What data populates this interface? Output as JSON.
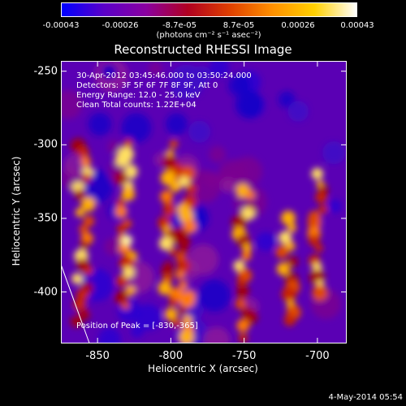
{
  "colorbar": {
    "ticks": [
      "-0.00043",
      "-0.00026",
      "-8.7e-05",
      "8.7e-05",
      "0.00026",
      "0.00043"
    ],
    "unit": "(photons cm⁻² s⁻¹ asec⁻²)",
    "colors": [
      "#0000ff",
      "#5a00c8",
      "#8a00a0",
      "#b00020",
      "#e04000",
      "#ff9000",
      "#ffd000",
      "#ffffff"
    ]
  },
  "chart_data": {
    "type": "heatmap",
    "title": "Reconstructed RHESSI Image",
    "xlabel": "Heliocentric X (arcsec)",
    "ylabel": "Heliocentric Y (arcsec)",
    "xlim": [
      -875,
      -680
    ],
    "ylim": [
      -435,
      -243
    ],
    "xticks": [
      -850,
      -800,
      -750,
      -700
    ],
    "yticks": [
      -250,
      -300,
      -350,
      -400
    ],
    "xtick_labels": [
      "-850",
      "-800",
      "-750",
      "-700"
    ],
    "ytick_labels": [
      "-250",
      "-300",
      "-350",
      "-400"
    ],
    "info_lines": [
      "30-Apr-2012 03:45:46.000 to 03:50:24.000",
      "Detectors: 3F 5F 6F 7F 8F 9F, Att 0",
      "Energy Range: 12.0 - 25.0 keV",
      "Clean    Total counts: 1.22E+04"
    ],
    "peak_label": "Position of Peak = [-830,-365]",
    "peak": [
      -830,
      -365
    ],
    "bright_columns": [
      {
        "x": -860,
        "y_range": [
          -420,
          -300
        ]
      },
      {
        "x": -830,
        "y_range": [
          -410,
          -300
        ]
      },
      {
        "x": -800,
        "y_range": [
          -420,
          -300
        ]
      },
      {
        "x": -790,
        "y_range": [
          -430,
          -320
        ]
      },
      {
        "x": -750,
        "y_range": [
          -430,
          -330
        ]
      },
      {
        "x": -720,
        "y_range": [
          -420,
          -350
        ]
      },
      {
        "x": -700,
        "y_range": [
          -400,
          -320
        ]
      }
    ]
  },
  "footer": {
    "datestamp": "4-May-2014 05:54"
  }
}
